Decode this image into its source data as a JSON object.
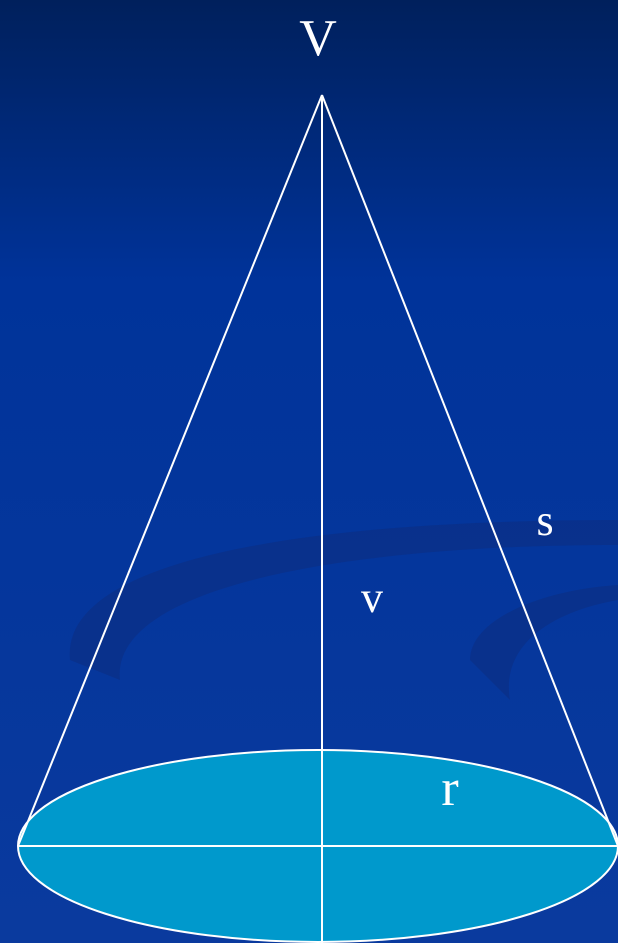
{
  "labels": {
    "apex": "V",
    "height": "v",
    "slant": "s",
    "radius": "r"
  }
}
